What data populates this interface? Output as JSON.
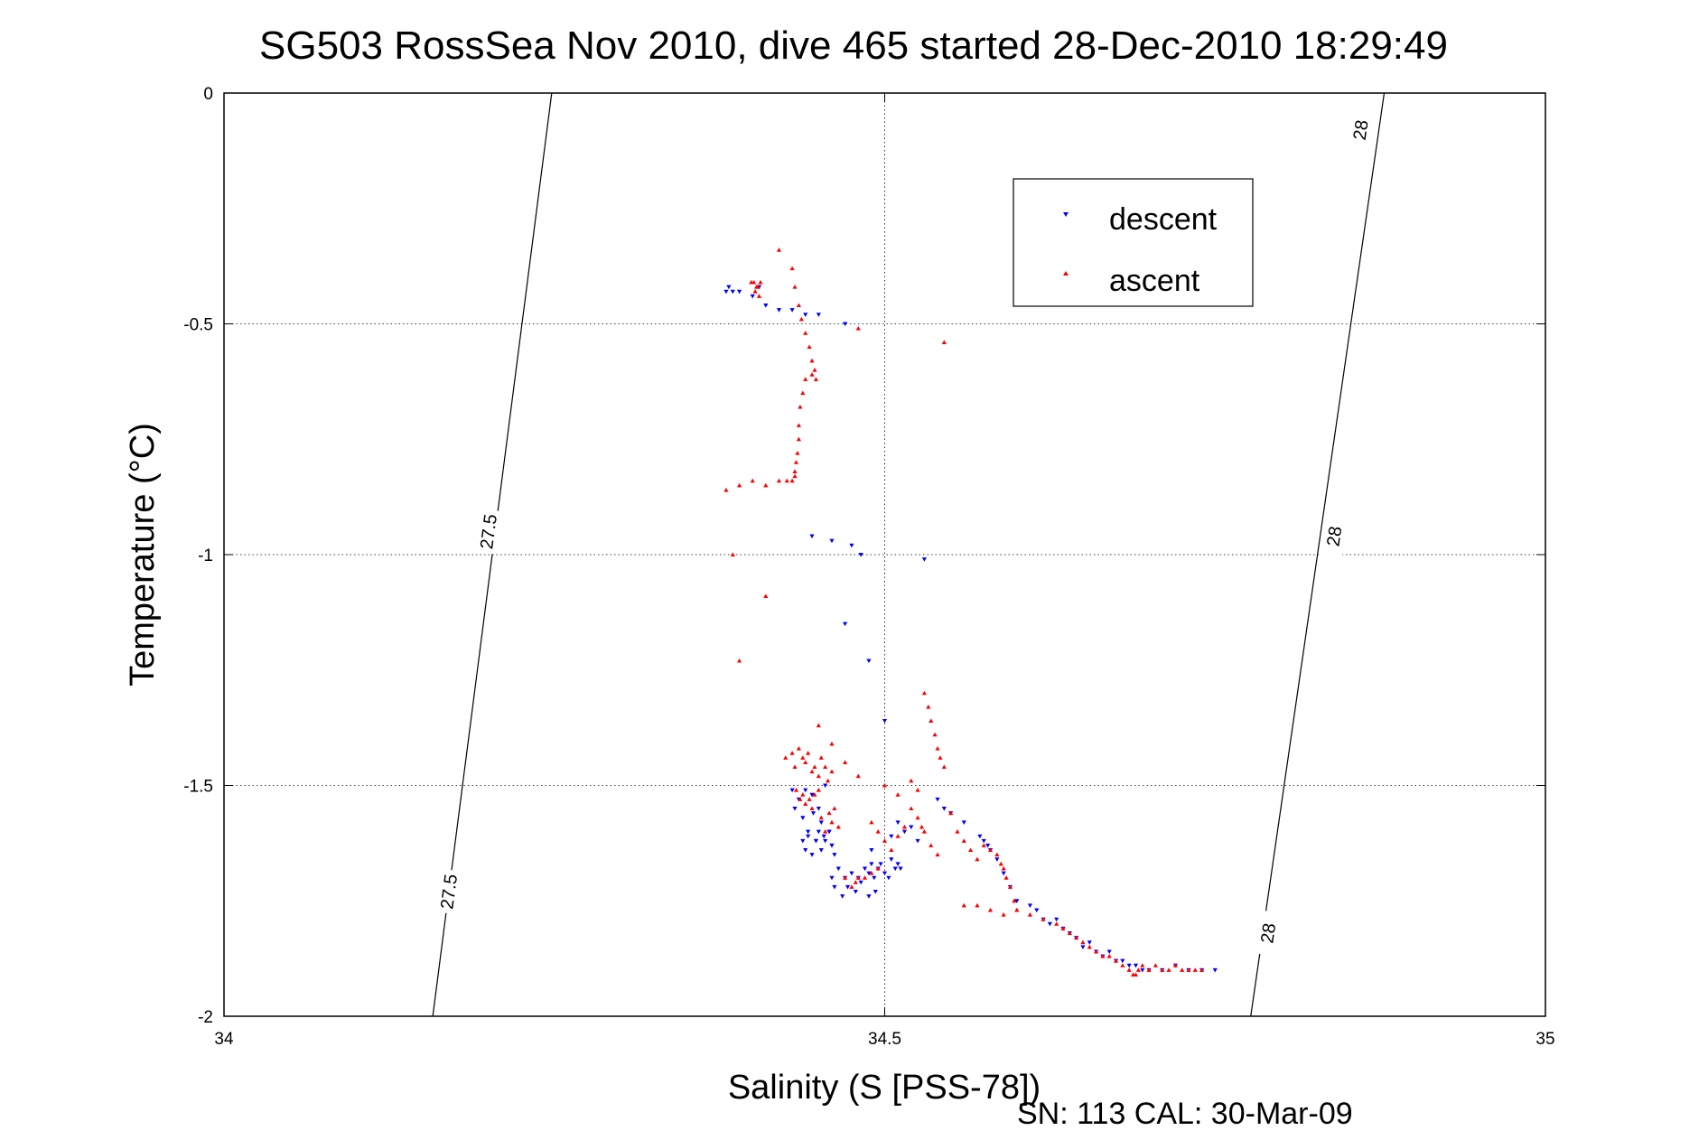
{
  "title": "SG503 RossSea Nov 2010, dive 465 started 28-Dec-2010 18:29:49",
  "footer": "SN: 113  CAL: 30-Mar-09",
  "chart_data": {
    "type": "scatter",
    "xlabel": "Salinity (S [PSS-78])",
    "ylabel": "Temperature (°C)",
    "xlim": [
      34,
      35
    ],
    "ylim": [
      -2,
      0
    ],
    "xticks": [
      34,
      34.5,
      35
    ],
    "xtick_labels": [
      "34",
      "34.5",
      "35"
    ],
    "yticks": [
      0,
      -0.5,
      -1,
      -1.5,
      -2
    ],
    "ytick_labels": [
      "0",
      "-0.5",
      "-1",
      "-1.5",
      "-2"
    ],
    "grid": true,
    "legend_position": "top-right",
    "colors": {
      "descent": "#0000ff",
      "ascent": "#ff0000",
      "axes": "#000000"
    },
    "contours": [
      {
        "label": "27.5",
        "points": [
          [
            34.158,
            -2
          ],
          [
            34.248,
            0
          ]
        ],
        "label_positions": [
          [
            34.17,
            -1.73
          ],
          [
            34.2,
            -0.95
          ]
        ]
      },
      {
        "label": "28",
        "points": [
          [
            34.777,
            -2
          ],
          [
            34.878,
            0
          ]
        ],
        "label_positions": [
          [
            34.79,
            -1.82
          ],
          [
            34.84,
            -0.96
          ],
          [
            34.86,
            -0.08
          ]
        ]
      }
    ],
    "series": [
      {
        "name": "descent",
        "marker": "triangle-down",
        "color": "#0000ff",
        "x": [
          34.38,
          34.382,
          34.385,
          34.39,
          34.4,
          34.405,
          34.41,
          34.42,
          34.43,
          34.44,
          34.45,
          34.47,
          34.445,
          34.46,
          34.475,
          34.482,
          34.47,
          34.488,
          34.53,
          34.43,
          34.432,
          34.435,
          34.44,
          34.438,
          34.442,
          34.445,
          34.446,
          34.448,
          34.45,
          34.452,
          34.454,
          34.455,
          34.458,
          34.46,
          34.438,
          34.44,
          34.442,
          34.445,
          34.448,
          34.45,
          34.452,
          34.455,
          34.458,
          34.46,
          34.462,
          34.46,
          34.462,
          34.465,
          34.468,
          34.47,
          34.472,
          34.475,
          34.478,
          34.48,
          34.482,
          34.485,
          34.488,
          34.49,
          34.493,
          34.488,
          34.492,
          34.495,
          34.497,
          34.5,
          34.503,
          34.505,
          34.508,
          34.51,
          34.512,
          34.49,
          34.5,
          34.505,
          34.51,
          34.515,
          34.52,
          34.525,
          34.54,
          34.545,
          34.55,
          34.56,
          34.572,
          34.575,
          34.578,
          34.58,
          34.585,
          34.59,
          34.595,
          34.6,
          34.61,
          34.615,
          34.62,
          34.625,
          34.63,
          34.635,
          34.64,
          34.645,
          34.65,
          34.655,
          34.66,
          34.665,
          34.67,
          34.675,
          34.68,
          34.685,
          34.69,
          34.695,
          34.7,
          34.71,
          34.72,
          34.73,
          34.74,
          34.75
        ],
        "y": [
          -0.43,
          -0.42,
          -0.43,
          -0.43,
          -0.44,
          -0.42,
          -0.46,
          -0.47,
          -0.47,
          -0.48,
          -0.48,
          -0.5,
          -0.96,
          -0.97,
          -0.98,
          -1.0,
          -1.15,
          -1.23,
          -1.01,
          -1.51,
          -1.55,
          -1.53,
          -1.51,
          -1.57,
          -1.6,
          -1.52,
          -1.56,
          -1.62,
          -1.55,
          -1.58,
          -1.61,
          -1.5,
          -1.6,
          -1.63,
          -1.62,
          -1.64,
          -1.61,
          -1.65,
          -1.62,
          -1.6,
          -1.64,
          -1.62,
          -1.6,
          -1.63,
          -1.65,
          -1.7,
          -1.72,
          -1.68,
          -1.74,
          -1.7,
          -1.72,
          -1.69,
          -1.73,
          -1.7,
          -1.71,
          -1.68,
          -1.74,
          -1.67,
          -1.73,
          -1.69,
          -1.7,
          -1.68,
          -1.67,
          -1.69,
          -1.7,
          -1.66,
          -1.68,
          -1.67,
          -1.68,
          -1.64,
          -1.36,
          -1.61,
          -1.58,
          -1.6,
          -1.59,
          -1.62,
          -1.53,
          -1.55,
          -1.56,
          -1.58,
          -1.61,
          -1.62,
          -1.63,
          -1.64,
          -1.66,
          -1.69,
          -1.72,
          -1.75,
          -1.76,
          -1.77,
          -1.79,
          -1.8,
          -1.79,
          -1.81,
          -1.82,
          -1.83,
          -1.85,
          -1.84,
          -1.86,
          -1.87,
          -1.86,
          -1.88,
          -1.88,
          -1.89,
          -1.89,
          -1.9,
          -1.9,
          -1.9,
          -1.89,
          -1.9,
          -1.9,
          -1.9
        ]
      },
      {
        "name": "ascent",
        "marker": "triangle-up",
        "color": "#ff0000",
        "x": [
          34.399,
          34.401,
          34.403,
          34.404,
          34.406,
          34.402,
          34.405,
          34.42,
          34.43,
          34.432,
          34.435,
          34.437,
          34.44,
          34.443,
          34.445,
          34.447,
          34.448,
          34.445,
          34.44,
          34.438,
          34.436,
          34.435,
          34.435,
          34.434,
          34.433,
          34.432,
          34.432,
          34.43,
          34.426,
          34.42,
          34.41,
          34.4,
          34.39,
          34.38,
          34.385,
          34.41,
          34.39,
          34.48,
          34.545,
          34.425,
          34.43,
          34.432,
          34.435,
          34.438,
          34.44,
          34.442,
          34.445,
          34.447,
          34.45,
          34.452,
          34.455,
          34.457,
          34.46,
          34.433,
          34.436,
          34.438,
          34.44,
          34.443,
          34.445,
          34.447,
          34.45,
          34.452,
          34.455,
          34.458,
          34.46,
          34.462,
          34.465,
          34.47,
          34.475,
          34.478,
          34.48,
          34.485,
          34.49,
          34.495,
          34.45,
          34.46,
          34.47,
          34.48,
          34.5,
          34.51,
          34.52,
          34.525,
          34.53,
          34.533,
          34.535,
          34.538,
          34.54,
          34.542,
          34.545,
          34.52,
          34.525,
          34.528,
          34.53,
          34.535,
          34.54,
          34.55,
          34.555,
          34.56,
          34.565,
          34.57,
          34.575,
          34.49,
          34.495,
          34.5,
          34.505,
          34.51,
          34.515,
          34.58,
          34.585,
          34.588,
          34.59,
          34.592,
          34.595,
          34.598,
          34.6,
          34.56,
          34.57,
          34.58,
          34.59,
          34.6,
          34.61,
          34.62,
          34.63,
          34.635,
          34.64,
          34.645,
          34.65,
          34.655,
          34.66,
          34.665,
          34.67,
          34.675,
          34.68,
          34.685,
          34.688,
          34.69,
          34.692,
          34.695,
          34.7,
          34.705,
          34.71,
          34.715,
          34.72,
          34.725,
          34.73,
          34.735,
          34.74
        ],
        "y": [
          -0.41,
          -0.41,
          -0.42,
          -0.42,
          -0.41,
          -0.43,
          -0.44,
          -0.34,
          -0.38,
          -0.42,
          -0.46,
          -0.49,
          -0.52,
          -0.55,
          -0.58,
          -0.6,
          -0.62,
          -0.61,
          -0.62,
          -0.65,
          -0.68,
          -0.72,
          -0.75,
          -0.78,
          -0.8,
          -0.82,
          -0.83,
          -0.84,
          -0.84,
          -0.84,
          -0.85,
          -0.84,
          -0.85,
          -0.86,
          -1.0,
          -1.09,
          -1.23,
          -0.51,
          -0.54,
          -1.44,
          -1.43,
          -1.46,
          -1.42,
          -1.44,
          -1.45,
          -1.43,
          -1.47,
          -1.46,
          -1.48,
          -1.44,
          -1.46,
          -1.49,
          -1.47,
          -1.51,
          -1.53,
          -1.52,
          -1.54,
          -1.53,
          -1.55,
          -1.52,
          -1.51,
          -1.57,
          -1.6,
          -1.56,
          -1.58,
          -1.55,
          -1.59,
          -1.7,
          -1.72,
          -1.71,
          -1.7,
          -1.7,
          -1.69,
          -1.68,
          -1.37,
          -1.41,
          -1.45,
          -1.48,
          -1.5,
          -1.52,
          -1.49,
          -1.51,
          -1.3,
          -1.33,
          -1.36,
          -1.39,
          -1.42,
          -1.44,
          -1.46,
          -1.55,
          -1.57,
          -1.59,
          -1.6,
          -1.63,
          -1.65,
          -1.56,
          -1.6,
          -1.62,
          -1.64,
          -1.66,
          -1.63,
          -1.58,
          -1.6,
          -1.62,
          -1.64,
          -1.61,
          -1.59,
          -1.64,
          -1.65,
          -1.67,
          -1.68,
          -1.7,
          -1.72,
          -1.75,
          -1.77,
          -1.76,
          -1.76,
          -1.77,
          -1.78,
          -1.77,
          -1.78,
          -1.79,
          -1.8,
          -1.81,
          -1.82,
          -1.83,
          -1.84,
          -1.85,
          -1.86,
          -1.87,
          -1.87,
          -1.88,
          -1.89,
          -1.9,
          -1.91,
          -1.91,
          -1.9,
          -1.89,
          -1.9,
          -1.89,
          -1.9,
          -1.9,
          -1.89,
          -1.9,
          -1.9,
          -1.9,
          -1.9
        ]
      }
    ]
  }
}
